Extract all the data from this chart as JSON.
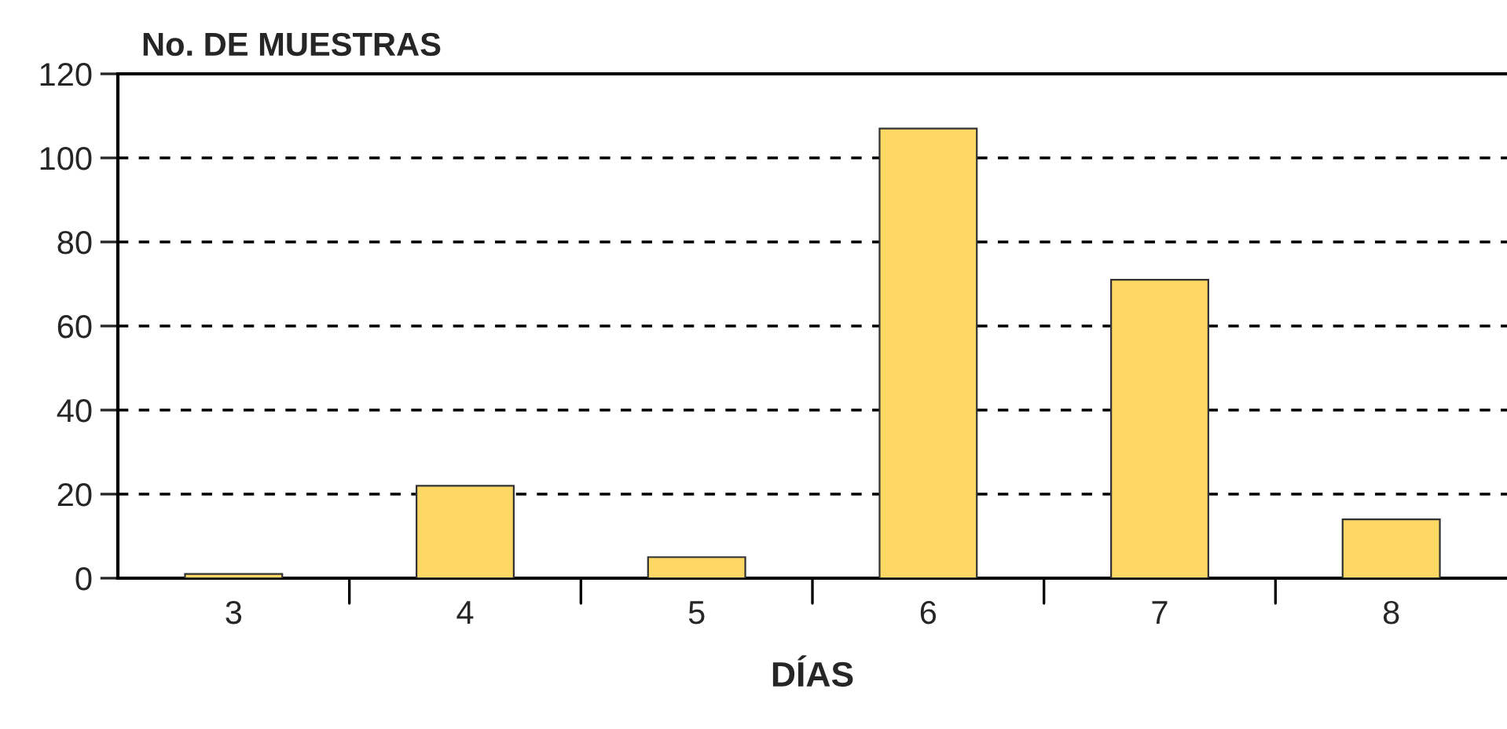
{
  "chart_data": {
    "type": "bar",
    "ylabel": "No. DE MUESTRAS",
    "xlabel": "DÍAS",
    "categories": [
      "3",
      "4",
      "5",
      "6",
      "7",
      "8"
    ],
    "values": [
      1,
      22,
      5,
      107,
      71,
      14
    ],
    "color": "#fdd865",
    "ylim": [
      0,
      120
    ],
    "yticks": [
      0,
      20,
      40,
      60,
      80,
      100,
      120
    ],
    "grid": "y"
  }
}
